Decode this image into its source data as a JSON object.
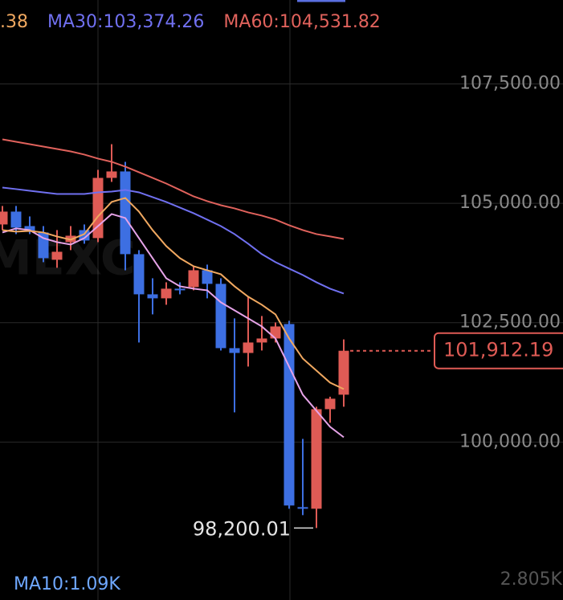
{
  "chart_data": {
    "type": "candlestick",
    "legend": [
      {
        "text": ".38",
        "color": "#f0a860"
      },
      {
        "text": "MA30:103,374.26",
        "color": "#7070f0"
      },
      {
        "text": "MA60:104,531.82",
        "color": "#e0625c"
      }
    ],
    "watermark": "MEXC",
    "up_color": "#df5b55",
    "down_color": "#3d6fe2",
    "open": [
      104557,
      104826,
      104523,
      104389,
      103817,
      104187,
      104439,
      104271,
      105532,
      105667,
      103935,
      103094,
      103010,
      103212,
      103245,
      103598,
      103313,
      101967,
      101866,
      102085,
      102169,
      102472,
      98638,
      98604,
      100689,
      100992
    ],
    "high": [
      104944,
      104944,
      104725,
      104523,
      104439,
      104523,
      104557,
      105700,
      106238,
      105868,
      104019,
      103430,
      103346,
      103346,
      103682,
      103716,
      103430,
      102590,
      103044,
      102640,
      102505,
      102539,
      100067,
      100740,
      100950,
      102150
    ],
    "low": [
      104439,
      104355,
      104355,
      103767,
      103649,
      104019,
      104153,
      104187,
      105448,
      103598,
      102085,
      102674,
      102875,
      103094,
      103178,
      103010,
      101917,
      100622,
      101581,
      101917,
      102085,
      98604,
      98470,
      98200.01,
      100404,
      100740
    ],
    "close": [
      104826,
      104490,
      104406,
      103851,
      103985,
      104321,
      104221,
      105532,
      105667,
      103935,
      103094,
      103010,
      103212,
      103178,
      103598,
      103313,
      101967,
      101866,
      102085,
      102169,
      102421,
      98672,
      98604,
      100689,
      100908,
      101912.19
    ],
    "ma_lines": [
      {
        "color": "#e6a3e8",
        "values": [
          104389,
          104473,
          104439,
          104271,
          104187,
          104136,
          104271,
          104523,
          104775,
          104691,
          104271,
          103851,
          103430,
          103262,
          103212,
          103178,
          102926,
          102758,
          102590,
          102421,
          102169,
          101581,
          100992,
          100656,
          100319,
          100101
        ]
      },
      {
        "color": "#f0a860",
        "values": [
          104439,
          104406,
          104422,
          104389,
          104305,
          104237,
          104355,
          104725,
          105028,
          105112,
          104826,
          104439,
          104103,
          103851,
          103682,
          103598,
          103514,
          103262,
          103044,
          102875,
          102674,
          102169,
          101749,
          101497,
          101244,
          101110
        ]
      },
      {
        "color": "#7070f0",
        "values": [
          105330,
          105297,
          105263,
          105229,
          105196,
          105196,
          105196,
          105229,
          105246,
          105280,
          105229,
          105129,
          105028,
          104910,
          104792,
          104658,
          104523,
          104355,
          104153,
          103935,
          103767,
          103632,
          103498,
          103346,
          103212,
          103111
        ]
      },
      {
        "color": "#e0625c",
        "values": [
          106339,
          106289,
          106238,
          106188,
          106137,
          106087,
          106020,
          105936,
          105868,
          105768,
          105650,
          105532,
          105414,
          105280,
          105145,
          105045,
          104960,
          104893,
          104809,
          104742,
          104658,
          104540,
          104439,
          104355,
          104305,
          104254
        ]
      }
    ],
    "ylim": [
      97450,
      108500
    ],
    "yticks": [
      {
        "value": 100000,
        "label": "100,000.00"
      },
      {
        "value": 102500,
        "label": "102,500.00"
      },
      {
        "value": 105000,
        "label": "105,000.00"
      },
      {
        "value": 107500,
        "label": "107,500.00"
      }
    ],
    "grid": true,
    "last_price": 101912.19,
    "last_price_label": "101,912.19",
    "low_label": "98,200.01",
    "volume_ma_label": "MA10:1.09K",
    "volume_max_label": "2.805K"
  }
}
